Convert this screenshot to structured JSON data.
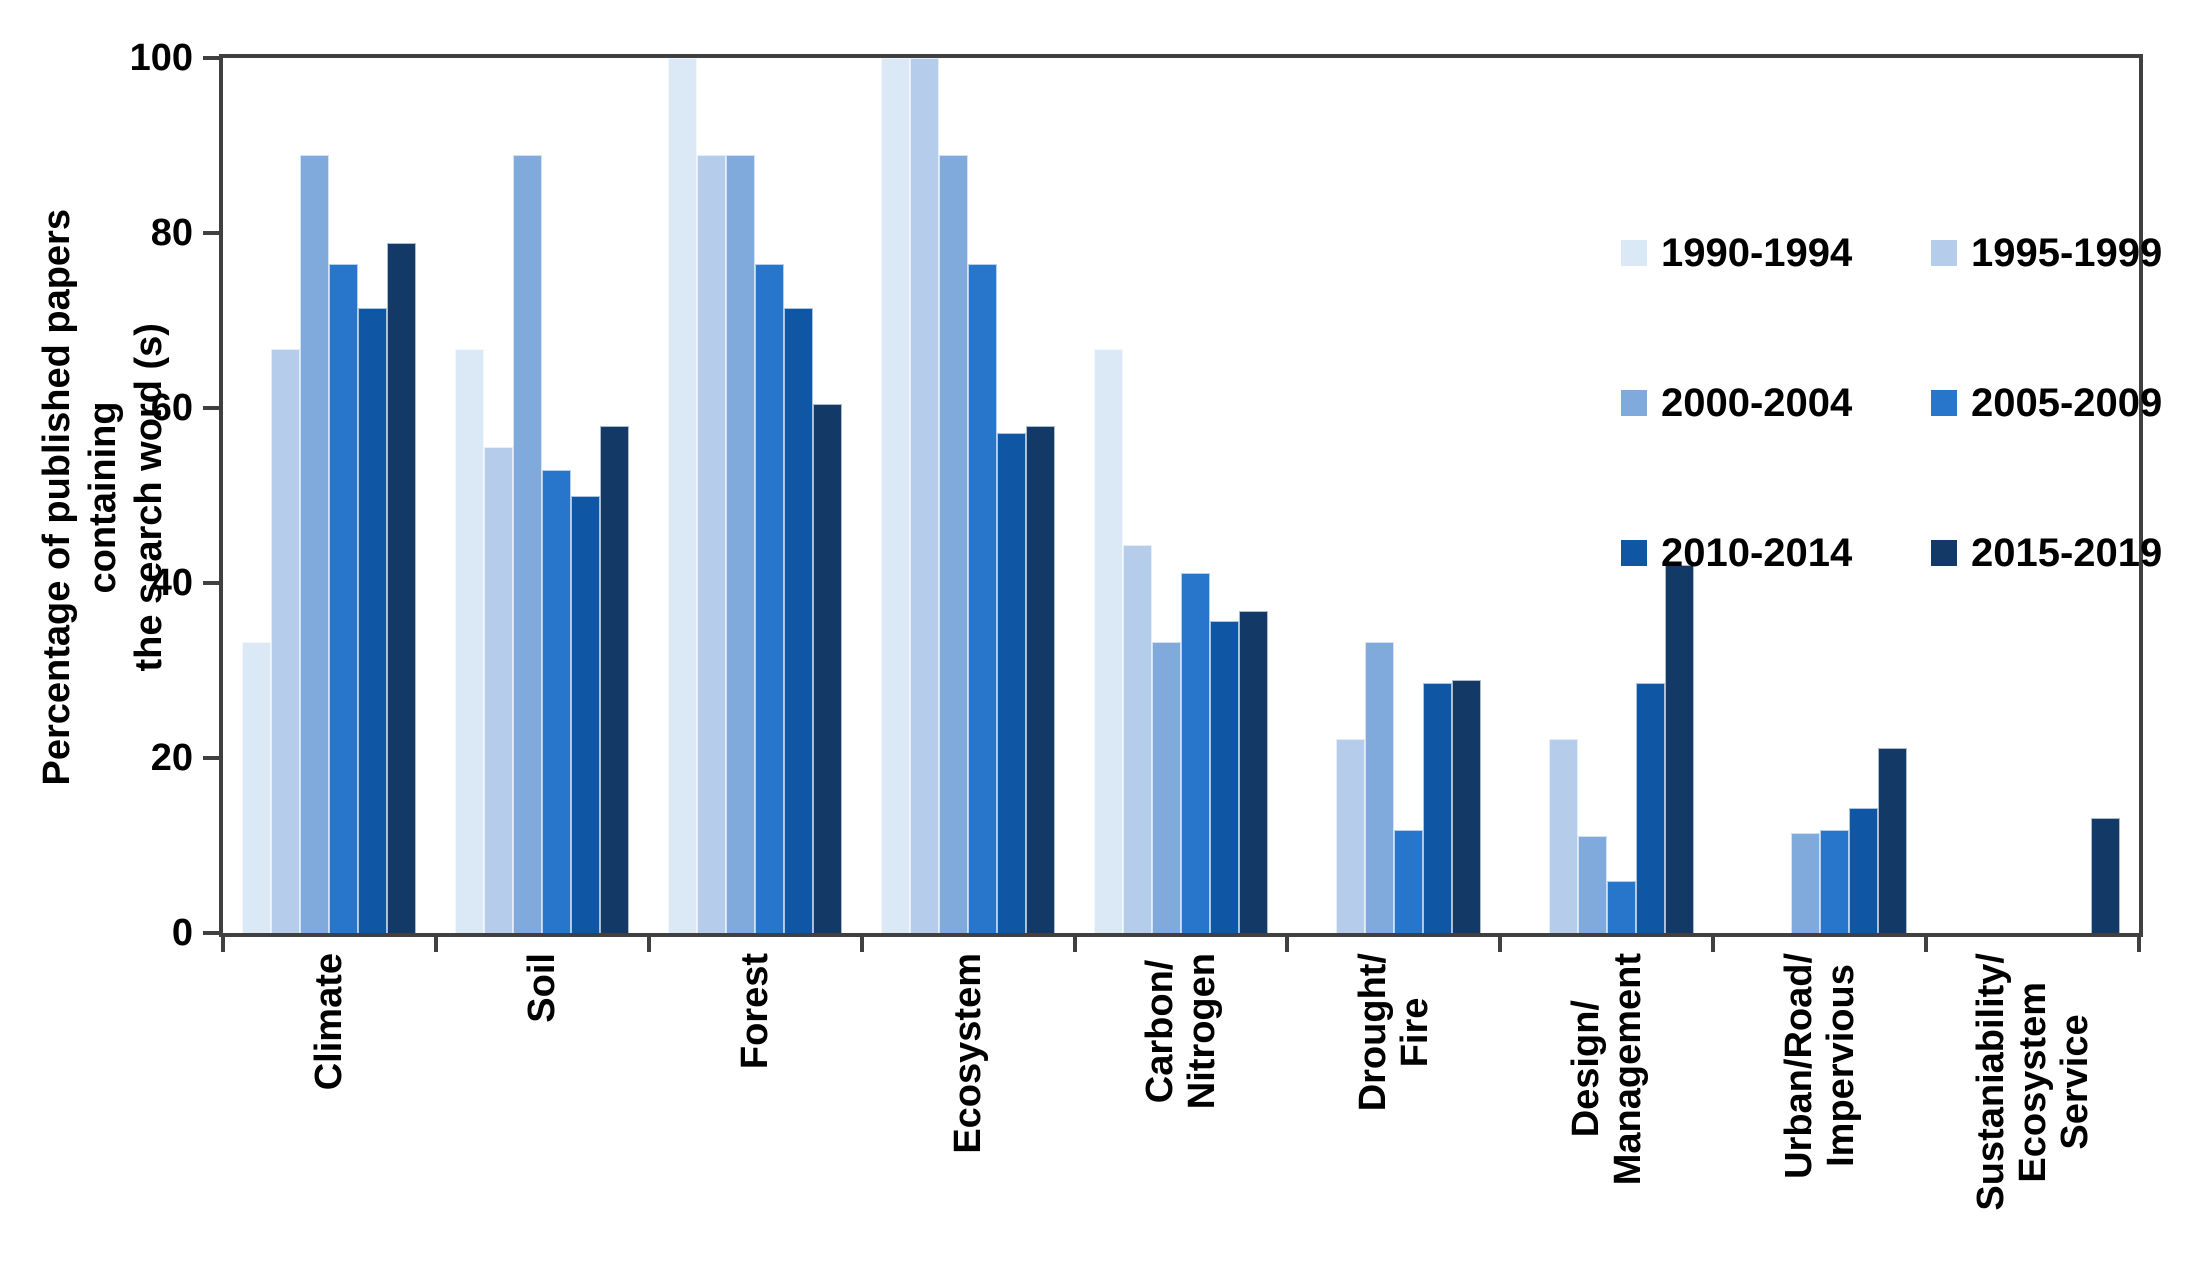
{
  "figure": {
    "background": "#ffffff",
    "axis_color": "#404040",
    "text_color": "#000000"
  },
  "y_axis": {
    "title_lines": "Percentage of published papers containing\nthe search word (s)",
    "ticks": [
      100,
      80,
      60,
      40,
      20,
      0
    ],
    "min": 0,
    "max": 100
  },
  "legend": {
    "position": "inside-top-right",
    "items": [
      "1990-1994",
      "1995-1999",
      "2000-2004",
      "2005-2009",
      "2010-2014",
      "2015-2019"
    ]
  },
  "chart_data": {
    "type": "bar",
    "title": "",
    "xlabel": "",
    "ylabel": "Percentage of published papers containing the search word (s)",
    "ylim": [
      0,
      100
    ],
    "grid": false,
    "legend_position": "top-right inside plot",
    "categories": [
      "Climate",
      "Soil",
      "Forest",
      "Ecosystem",
      "Carbon/\nNitrogen",
      "Drought/\nFire",
      "Design/\nManagement",
      "Urban/Road/\nImpervious",
      "Sustaniability/\nEcosystem\nService"
    ],
    "series": [
      {
        "name": "1990-1994",
        "color": "#dbe8f6",
        "values": [
          33.3,
          66.7,
          100,
          100,
          66.7,
          0,
          0,
          0,
          0
        ]
      },
      {
        "name": "1995-1999",
        "color": "#b5cdea",
        "values": [
          66.7,
          55.6,
          88.9,
          100,
          44.4,
          22.2,
          22.2,
          0,
          0
        ]
      },
      {
        "name": "2000-2004",
        "color": "#80a9dc",
        "values": [
          88.9,
          88.9,
          88.9,
          88.9,
          33.3,
          33.3,
          11.1,
          11.4,
          0
        ]
      },
      {
        "name": "2005-2009",
        "color": "#2776cc",
        "values": [
          76.5,
          52.9,
          76.5,
          76.5,
          41.2,
          11.8,
          5.9,
          11.8,
          0
        ]
      },
      {
        "name": "2010-2014",
        "color": "#0f57a4",
        "values": [
          71.4,
          50.0,
          71.4,
          57.1,
          35.7,
          28.6,
          28.6,
          14.3,
          0
        ]
      },
      {
        "name": "2015-2019",
        "color": "#133a66",
        "values": [
          78.9,
          57.9,
          60.5,
          57.9,
          36.8,
          28.9,
          42.1,
          21.1,
          13.2
        ]
      }
    ]
  }
}
